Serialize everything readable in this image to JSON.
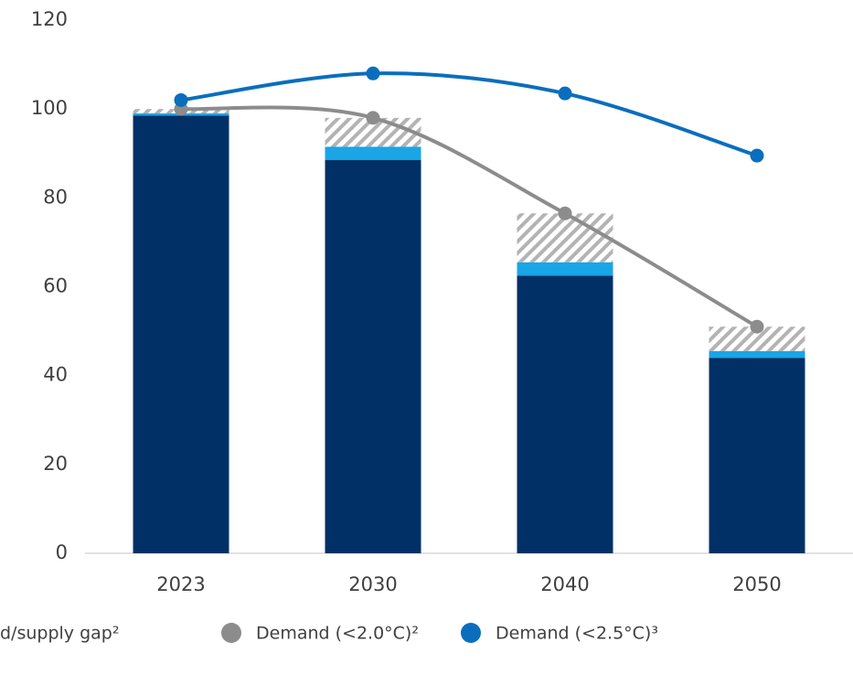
{
  "chart_data": {
    "type": "bar",
    "categories": [
      "2023",
      "2030",
      "2040",
      "2050"
    ],
    "ylim": [
      0,
      120
    ],
    "yticks": [
      0,
      20,
      40,
      60,
      80,
      100,
      120
    ],
    "grid": false,
    "series": [
      {
        "type": "bar",
        "color": "#003066",
        "values": [
          98.5,
          88.5,
          62.5,
          44
        ]
      },
      {
        "type": "bar",
        "color": "#1aa5e6",
        "values": [
          0.5,
          3,
          3,
          1.5
        ]
      },
      {
        "type": "bar",
        "name": "d/supply gap²",
        "color": "#b3b3b3",
        "pattern": "hatch",
        "values": [
          1,
          6.5,
          11,
          5.5
        ]
      },
      {
        "type": "line",
        "name": "Demand (<2.0°C)²",
        "color": "#8c8c8c",
        "values": [
          100,
          98,
          76.5,
          51
        ]
      },
      {
        "type": "line",
        "name": "Demand (<2.5°C)³",
        "color": "#0a6ebd",
        "values": [
          102,
          108,
          103.5,
          89.5
        ]
      }
    ]
  }
}
